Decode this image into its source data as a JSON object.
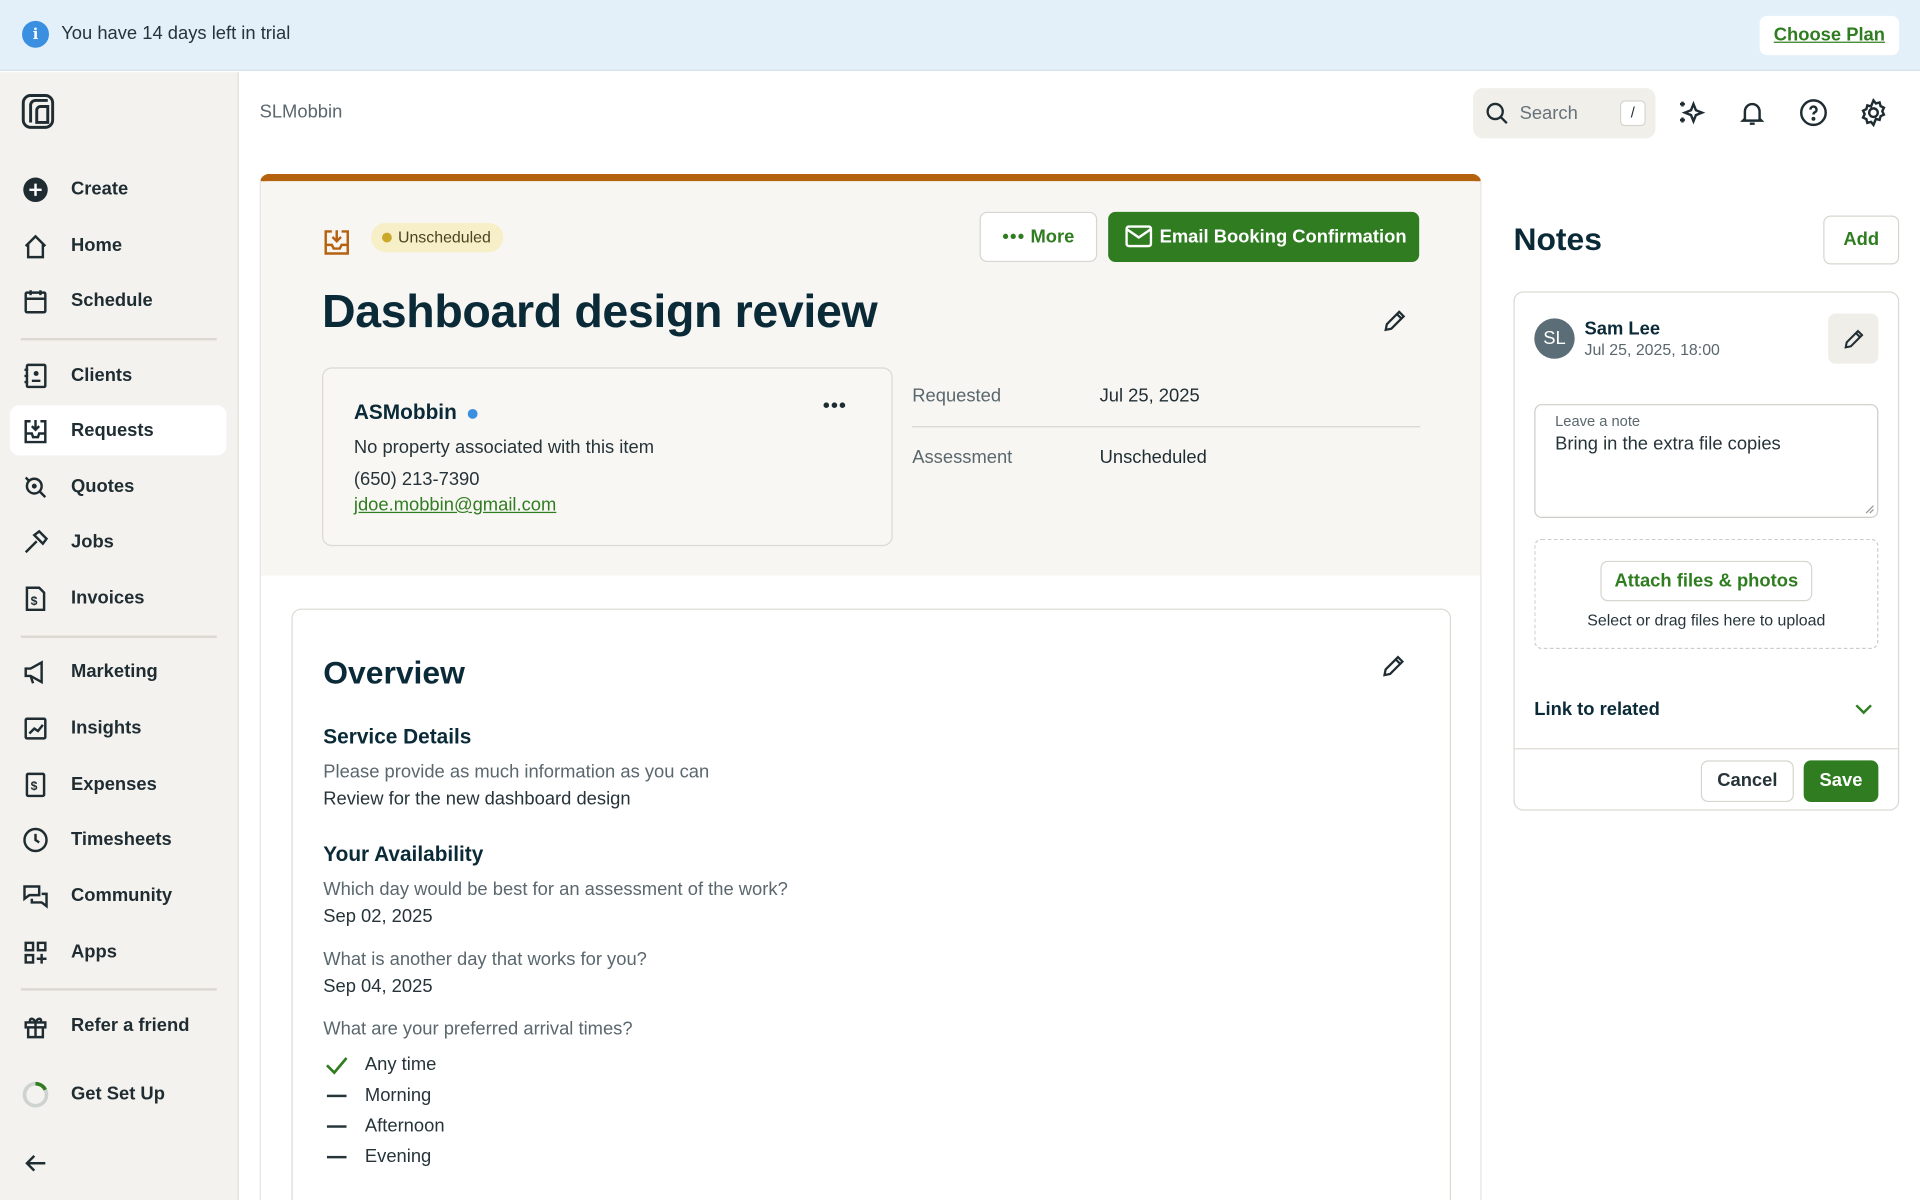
{
  "banner": {
    "text": "You have 14 days left in trial",
    "cta": "Choose Plan",
    "icon": "info-icon"
  },
  "sidebar": {
    "items": [
      {
        "label": "Create",
        "icon": "plus-circle-icon"
      },
      {
        "label": "Home",
        "icon": "home-icon"
      },
      {
        "label": "Schedule",
        "icon": "calendar-icon"
      },
      {
        "label": "Clients",
        "icon": "contacts-icon"
      },
      {
        "label": "Requests",
        "icon": "inbox-download-icon",
        "active": true
      },
      {
        "label": "Quotes",
        "icon": "quote-icon"
      },
      {
        "label": "Jobs",
        "icon": "hammer-icon"
      },
      {
        "label": "Invoices",
        "icon": "invoice-icon"
      },
      {
        "label": "Marketing",
        "icon": "megaphone-icon"
      },
      {
        "label": "Insights",
        "icon": "chart-icon"
      },
      {
        "label": "Expenses",
        "icon": "receipt-icon"
      },
      {
        "label": "Timesheets",
        "icon": "clock-icon"
      },
      {
        "label": "Community",
        "icon": "chat-icon"
      },
      {
        "label": "Apps",
        "icon": "apps-icon"
      },
      {
        "label": "Refer a friend",
        "icon": "gift-icon"
      },
      {
        "label": "Get Set Up",
        "icon": "progress-ring-icon"
      }
    ]
  },
  "header": {
    "breadcrumb": "SLMobbin",
    "search_placeholder": "Search",
    "search_shortcut": "/"
  },
  "request": {
    "status": "Unscheduled",
    "status_color": "#c9a82a",
    "accent": "#b5620f",
    "brand": "#2f7d20",
    "more_label": "More",
    "email_label": "Email Booking Confirmation",
    "title": "Dashboard design review",
    "client": {
      "name": "ASMobbin",
      "property": "No property associated with this item",
      "phone": "(650) 213-7390",
      "email": "jdoe.mobbin@gmail.com"
    },
    "meta": [
      {
        "label": "Requested",
        "value": "Jul 25, 2025"
      },
      {
        "label": "Assessment",
        "value": "Unscheduled"
      }
    ]
  },
  "overview": {
    "title": "Overview",
    "service_heading": "Service Details",
    "service_q": "Please provide as much information as you can",
    "service_a": "Review for the new dashboard design",
    "avail_heading": "Your Availability",
    "q1": "Which day would be best for an assessment of the work?",
    "a1": "Sep 02, 2025",
    "q2": "What is another day that works for you?",
    "a2": "Sep 04, 2025",
    "q3": "What are your preferred arrival times?",
    "times": [
      {
        "label": "Any time",
        "checked": true
      },
      {
        "label": "Morning",
        "checked": false
      },
      {
        "label": "Afternoon",
        "checked": false
      },
      {
        "label": "Evening",
        "checked": false
      }
    ]
  },
  "notes": {
    "title": "Notes",
    "add_label": "Add",
    "author_initials": "SL",
    "author": "Sam Lee",
    "date": "Jul 25, 2025, 18:00",
    "field_label": "Leave a note",
    "field_value": "Bring in the extra file copies",
    "attach_label": "Attach files & photos",
    "attach_hint": "Select or drag files here to upload",
    "link_label": "Link to related",
    "cancel_label": "Cancel",
    "save_label": "Save"
  }
}
